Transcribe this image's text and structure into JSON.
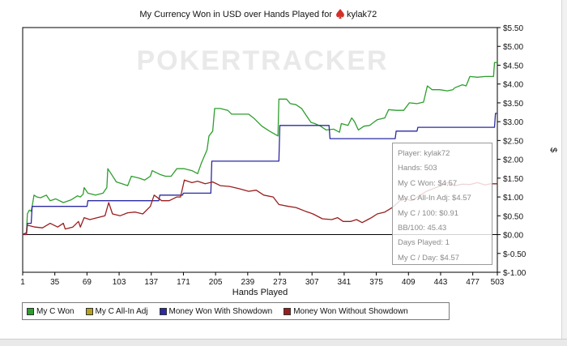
{
  "chart_data": {
    "type": "line",
    "title": "My Currency Won in USD over Hands Played for",
    "player": "kylak72",
    "watermark": "POKERTRACKER",
    "xlabel": "Hands Played",
    "ylabel": "$",
    "xlim": [
      1,
      503
    ],
    "ylim": [
      -1.0,
      5.5
    ],
    "x_ticks": [
      "1",
      "35",
      "69",
      "103",
      "137",
      "171",
      "205",
      "239",
      "273",
      "307",
      "341",
      "375",
      "409",
      "443",
      "477",
      "503"
    ],
    "y_ticks": [
      "$5.50",
      "$5.00",
      "$4.50",
      "$4.00",
      "$3.50",
      "$3.00",
      "$2.50",
      "$2.00",
      "$1.50",
      "$1.00",
      "$0.50",
      "$0.00",
      "$-0.50",
      "$-1.00"
    ],
    "grid": false,
    "legend_position": "bottom",
    "series": [
      {
        "name": "My C Won",
        "color": "#2e9e2e",
        "points": [
          [
            1,
            0
          ],
          [
            5,
            0.05
          ],
          [
            6,
            0.55
          ],
          [
            8,
            0.65
          ],
          [
            10,
            0.62
          ],
          [
            11,
            0.75
          ],
          [
            13,
            1.05
          ],
          [
            16,
            1.0
          ],
          [
            20,
            0.98
          ],
          [
            26,
            1.05
          ],
          [
            30,
            0.9
          ],
          [
            36,
            0.95
          ],
          [
            44,
            0.85
          ],
          [
            52,
            0.92
          ],
          [
            59,
            1.03
          ],
          [
            62,
            1.0
          ],
          [
            65,
            1.08
          ],
          [
            66,
            1.25
          ],
          [
            70,
            1.1
          ],
          [
            78,
            1.05
          ],
          [
            86,
            1.1
          ],
          [
            90,
            1.25
          ],
          [
            91,
            1.75
          ],
          [
            95,
            1.6
          ],
          [
            100,
            1.4
          ],
          [
            106,
            1.35
          ],
          [
            112,
            1.3
          ],
          [
            116,
            1.55
          ],
          [
            124,
            1.5
          ],
          [
            130,
            1.45
          ],
          [
            136,
            1.55
          ],
          [
            138,
            1.7
          ],
          [
            146,
            1.6
          ],
          [
            152,
            1.55
          ],
          [
            158,
            1.55
          ],
          [
            164,
            1.75
          ],
          [
            172,
            1.75
          ],
          [
            180,
            1.7
          ],
          [
            186,
            1.62
          ],
          [
            190,
            1.9
          ],
          [
            196,
            2.25
          ],
          [
            198,
            2.62
          ],
          [
            202,
            2.75
          ],
          [
            204,
            3.35
          ],
          [
            210,
            3.35
          ],
          [
            218,
            3.3
          ],
          [
            222,
            3.2
          ],
          [
            240,
            3.2
          ],
          [
            246,
            3.08
          ],
          [
            254,
            2.88
          ],
          [
            262,
            2.75
          ],
          [
            271,
            2.62
          ],
          [
            272,
            3.6
          ],
          [
            280,
            3.6
          ],
          [
            284,
            3.48
          ],
          [
            290,
            3.45
          ],
          [
            296,
            3.35
          ],
          [
            300,
            3.2
          ],
          [
            306,
            2.98
          ],
          [
            310,
            2.95
          ],
          [
            316,
            2.88
          ],
          [
            322,
            2.78
          ],
          [
            330,
            2.8
          ],
          [
            336,
            2.72
          ],
          [
            338,
            2.95
          ],
          [
            345,
            2.9
          ],
          [
            349,
            3.1
          ],
          [
            352,
            3.0
          ],
          [
            356,
            2.78
          ],
          [
            362,
            2.88
          ],
          [
            368,
            2.9
          ],
          [
            372,
            2.98
          ],
          [
            376,
            3.05
          ],
          [
            384,
            3.1
          ],
          [
            388,
            3.32
          ],
          [
            396,
            3.3
          ],
          [
            404,
            3.3
          ],
          [
            410,
            3.5
          ],
          [
            418,
            3.48
          ],
          [
            425,
            3.52
          ],
          [
            429,
            3.95
          ],
          [
            434,
            3.85
          ],
          [
            442,
            3.85
          ],
          [
            450,
            3.82
          ],
          [
            456,
            3.85
          ],
          [
            458,
            3.9
          ],
          [
            466,
            3.98
          ],
          [
            470,
            3.95
          ],
          [
            474,
            4.2
          ],
          [
            482,
            4.18
          ],
          [
            490,
            4.2
          ],
          [
            499,
            4.2
          ],
          [
            500,
            4.57
          ],
          [
            503,
            4.57
          ]
        ]
      },
      {
        "name": "My C All-In Adj",
        "color": "#b8a21a",
        "points": []
      },
      {
        "name": "Money Won With Showdown",
        "color": "#2a2aa2",
        "points": [
          [
            1,
            0
          ],
          [
            5,
            0.05
          ],
          [
            6,
            0.3
          ],
          [
            10,
            0.3
          ],
          [
            11,
            0.75
          ],
          [
            69,
            0.75
          ],
          [
            70,
            0.9
          ],
          [
            145,
            0.9
          ],
          [
            146,
            1.05
          ],
          [
            170,
            1.05
          ],
          [
            171,
            1.1
          ],
          [
            200,
            1.1
          ],
          [
            201,
            1.95
          ],
          [
            272,
            1.95
          ],
          [
            273,
            2.9
          ],
          [
            325,
            2.9
          ],
          [
            326,
            2.55
          ],
          [
            395,
            2.55
          ],
          [
            396,
            2.75
          ],
          [
            418,
            2.75
          ],
          [
            419,
            2.85
          ],
          [
            500,
            2.85
          ],
          [
            501,
            3.22
          ],
          [
            503,
            3.22
          ]
        ]
      },
      {
        "name": "Money Won Without Showdown",
        "color": "#9a1e1e",
        "points": [
          [
            1,
            0
          ],
          [
            5,
            0
          ],
          [
            6,
            0.25
          ],
          [
            14,
            0.2
          ],
          [
            22,
            0.18
          ],
          [
            30,
            0.3
          ],
          [
            38,
            0.2
          ],
          [
            44,
            0.3
          ],
          [
            46,
            0.15
          ],
          [
            54,
            0.2
          ],
          [
            60,
            0.35
          ],
          [
            62,
            0.2
          ],
          [
            66,
            0.45
          ],
          [
            72,
            0.4
          ],
          [
            80,
            0.45
          ],
          [
            88,
            0.5
          ],
          [
            92,
            0.85
          ],
          [
            96,
            0.55
          ],
          [
            104,
            0.5
          ],
          [
            112,
            0.58
          ],
          [
            120,
            0.6
          ],
          [
            128,
            0.55
          ],
          [
            136,
            0.75
          ],
          [
            140,
            1.05
          ],
          [
            148,
            0.9
          ],
          [
            156,
            0.9
          ],
          [
            164,
            1.0
          ],
          [
            168,
            1.0
          ],
          [
            172,
            1.45
          ],
          [
            180,
            1.38
          ],
          [
            186,
            1.42
          ],
          [
            194,
            1.35
          ],
          [
            202,
            1.4
          ],
          [
            210,
            1.3
          ],
          [
            220,
            1.28
          ],
          [
            230,
            1.22
          ],
          [
            240,
            1.15
          ],
          [
            248,
            1.18
          ],
          [
            256,
            1.05
          ],
          [
            266,
            1.0
          ],
          [
            272,
            0.8
          ],
          [
            282,
            0.75
          ],
          [
            290,
            0.72
          ],
          [
            300,
            0.62
          ],
          [
            308,
            0.55
          ],
          [
            318,
            0.42
          ],
          [
            328,
            0.4
          ],
          [
            334,
            0.45
          ],
          [
            340,
            0.35
          ],
          [
            348,
            0.35
          ],
          [
            354,
            0.4
          ],
          [
            360,
            0.32
          ],
          [
            366,
            0.4
          ],
          [
            370,
            0.45
          ],
          [
            376,
            0.55
          ],
          [
            384,
            0.6
          ],
          [
            392,
            0.72
          ],
          [
            400,
            0.9
          ],
          [
            406,
            0.95
          ],
          [
            412,
            0.9
          ],
          [
            420,
            1.02
          ],
          [
            428,
            1.15
          ],
          [
            438,
            1.25
          ],
          [
            444,
            1.3
          ],
          [
            450,
            1.38
          ],
          [
            458,
            1.3
          ],
          [
            466,
            1.34
          ],
          [
            474,
            1.33
          ],
          [
            482,
            1.38
          ],
          [
            490,
            1.32
          ],
          [
            496,
            1.35
          ],
          [
            503,
            1.35
          ]
        ]
      }
    ]
  },
  "tooltip": {
    "lines": [
      "Player: kylak72",
      "Hands: 503",
      "My C Won: $4.57",
      "My C All-In Adj: $4.57",
      "My C / 100: $0.91",
      "BB/100: 45.43",
      "Days Played: 1",
      "My C / Day: $4.57"
    ]
  },
  "colors": {
    "axis": "#000000",
    "title": "#111111",
    "spade_icon": "#d4302a"
  }
}
